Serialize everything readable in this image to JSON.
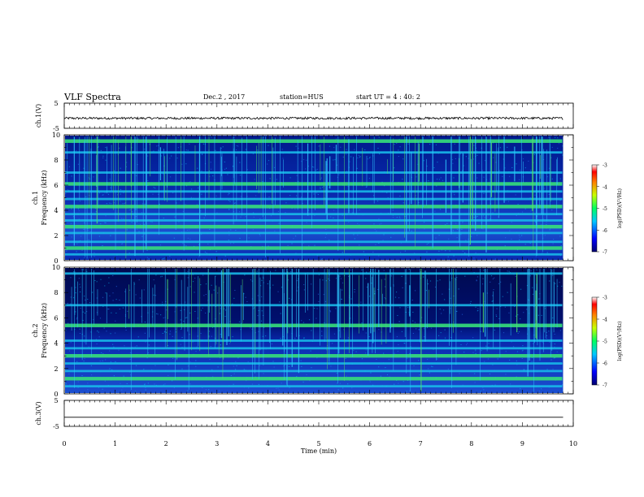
{
  "header": {
    "title": "VLF Spectra",
    "date": "Dec.2 , 2017",
    "station": "station=HUS",
    "start": "start UT =  4 : 40: 2"
  },
  "chart_data": [
    {
      "type": "line",
      "ylabel": "ch.1(V)",
      "ylim": [
        -5,
        5
      ],
      "yticks": [
        "5",
        "-5"
      ],
      "xlim": [
        0,
        10
      ],
      "x_end": 9.8,
      "baseline": -1.0,
      "jitter": 0.45
    },
    {
      "type": "heatmap",
      "ylabel": "Frequency (kHz)",
      "channel": "ch.1",
      "ylim": [
        0,
        10
      ],
      "yticks": [
        "0",
        "2",
        "4",
        "6",
        "8",
        "10"
      ],
      "xlim": [
        0,
        10
      ],
      "x_end": 9.8,
      "bands_khz": [
        0.5,
        1.0,
        1.5,
        2.2,
        2.7,
        3.2,
        3.7,
        4.3,
        4.9,
        5.5,
        6.1,
        7.0,
        8.6,
        9.5
      ],
      "colorbar": {
        "label": "log(PSD)(V²/Hz)",
        "ticks": [
          "-3",
          "-4",
          "-5",
          "-6",
          "-7"
        ],
        "range": [
          -7,
          -3
        ]
      }
    },
    {
      "type": "heatmap",
      "ylabel": "Frequency (kHz)",
      "channel": "ch.2",
      "ylim": [
        0,
        10
      ],
      "yticks": [
        "0",
        "2",
        "4",
        "6",
        "8",
        "10"
      ],
      "xlim": [
        0,
        10
      ],
      "x_end": 9.8,
      "bands_khz": [
        0.6,
        1.2,
        1.8,
        2.4,
        3.0,
        3.6,
        4.2,
        5.4,
        7.0,
        9.5
      ],
      "colorbar": {
        "label": "log(PSD)(V²/Hz)",
        "ticks": [
          "-3",
          "-4",
          "-5",
          "-6",
          "-7"
        ],
        "range": [
          -7,
          -3
        ]
      }
    },
    {
      "type": "line",
      "ylabel": "ch.3(V)",
      "ylim": [
        -5,
        5
      ],
      "yticks": [
        "5",
        "-5"
      ],
      "xlim": [
        0,
        10
      ],
      "x_end": 9.8,
      "baseline": -1.5,
      "jitter": 0
    }
  ],
  "xaxis": {
    "label": "Time  (min)",
    "ticks": [
      "0",
      "1",
      "2",
      "3",
      "4",
      "5",
      "6",
      "7",
      "8",
      "9",
      "10"
    ]
  }
}
